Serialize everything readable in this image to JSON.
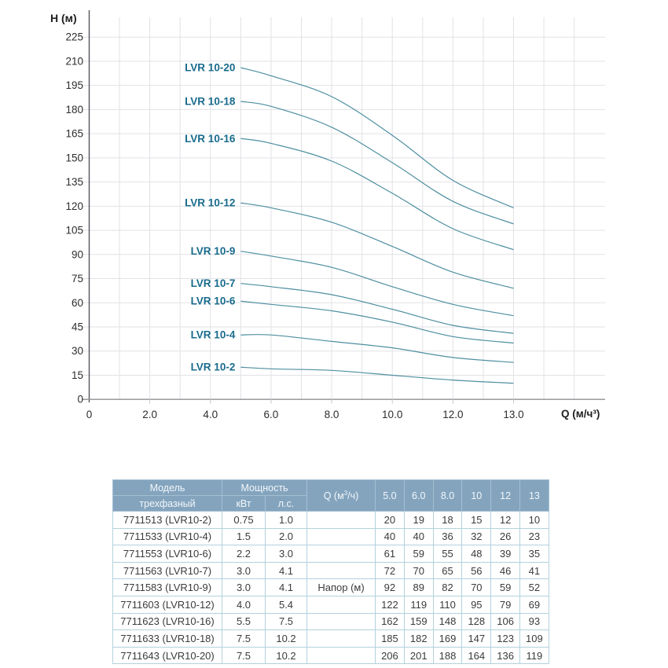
{
  "chart": {
    "y_axis_title": "H (м)",
    "x_axis_title": "Q (м/ч³)",
    "y_ticks": [
      0,
      15,
      30,
      45,
      60,
      75,
      90,
      105,
      120,
      135,
      150,
      165,
      180,
      195,
      210,
      225
    ],
    "x_ticks": [
      {
        "q": 0,
        "label": "0"
      },
      {
        "q": 2,
        "label": "2.0"
      },
      {
        "q": 4,
        "label": "4.0"
      },
      {
        "q": 6,
        "label": "6.0"
      },
      {
        "q": 8,
        "label": "8.0"
      },
      {
        "q": 10,
        "label": "10.0"
      },
      {
        "q": 12,
        "label": "12.0"
      },
      {
        "q": 13,
        "label": "13.0"
      }
    ]
  },
  "chart_data": {
    "type": "line",
    "title": "",
    "xlabel": "Q (м/ч³)",
    "ylabel": "H (м)",
    "xlim": [
      0,
      13
    ],
    "ylim": [
      0,
      235
    ],
    "grid": true,
    "legend_position": "inline-left-of-curves",
    "x": [
      5.0,
      6.0,
      8.0,
      10,
      12,
      13
    ],
    "series": [
      {
        "name": "LVR 10-2",
        "values": [
          20,
          19,
          18,
          15,
          12,
          10
        ]
      },
      {
        "name": "LVR 10-4",
        "values": [
          40,
          40,
          36,
          32,
          26,
          23
        ]
      },
      {
        "name": "LVR 10-6",
        "values": [
          61,
          59,
          55,
          48,
          39,
          35
        ]
      },
      {
        "name": "LVR 10-7",
        "values": [
          72,
          70,
          65,
          56,
          46,
          41
        ]
      },
      {
        "name": "LVR 10-9",
        "values": [
          92,
          89,
          82,
          70,
          59,
          52
        ]
      },
      {
        "name": "LVR 10-12",
        "values": [
          122,
          119,
          110,
          95,
          79,
          69
        ]
      },
      {
        "name": "LVR 10-16",
        "values": [
          162,
          159,
          148,
          128,
          106,
          93
        ]
      },
      {
        "name": "LVR 10-18",
        "values": [
          185,
          182,
          169,
          147,
          123,
          109
        ]
      },
      {
        "name": "LVR 10-20",
        "values": [
          206,
          201,
          188,
          164,
          136,
          119
        ]
      }
    ]
  },
  "colors": {
    "curve": "#4e8fa0",
    "curve_label": "#196b8d",
    "grid": "#e2e2e6",
    "axis_y": "#55555c",
    "axis_x": "#8f8f94",
    "tick_text": "#2d2d2d",
    "table_header_bg": "#84a4be",
    "table_header_text": "#f2f7fa",
    "table_border": "#b3d1dc",
    "table_text": "#3b3b3b"
  },
  "table": {
    "header": {
      "model_top": "Модель",
      "model_bottom": "трехфазный",
      "power": "Мощность",
      "power_kw": "кВт",
      "power_hp": "л.с.",
      "q": "Q (м³/ч)",
      "flows": [
        "5.0",
        "6.0",
        "8.0",
        "10",
        "12",
        "13"
      ]
    },
    "rows": [
      {
        "model": "7711513 (LVR10-2)",
        "kw": "0.75",
        "hp": "1.0",
        "q": "",
        "heads": [
          "20",
          "19",
          "18",
          "15",
          "12",
          "10"
        ]
      },
      {
        "model": "7711533 (LVR10-4)",
        "kw": "1.5",
        "hp": "2.0",
        "q": "",
        "heads": [
          "40",
          "40",
          "36",
          "32",
          "26",
          "23"
        ]
      },
      {
        "model": "7711553 (LVR10-6)",
        "kw": "2.2",
        "hp": "3.0",
        "q": "",
        "heads": [
          "61",
          "59",
          "55",
          "48",
          "39",
          "35"
        ]
      },
      {
        "model": "7711563 (LVR10-7)",
        "kw": "3.0",
        "hp": "4.1",
        "q": "",
        "heads": [
          "72",
          "70",
          "65",
          "56",
          "46",
          "41"
        ]
      },
      {
        "model": "7711583 (LVR10-9)",
        "kw": "3.0",
        "hp": "4.1",
        "q": "Напор (м)",
        "heads": [
          "92",
          "89",
          "82",
          "70",
          "59",
          "52"
        ]
      },
      {
        "model": "7711603 (LVR10-12)",
        "kw": "4.0",
        "hp": "5.4",
        "q": "",
        "heads": [
          "122",
          "119",
          "110",
          "95",
          "79",
          "69"
        ]
      },
      {
        "model": "7711623 (LVR10-16)",
        "kw": "5.5",
        "hp": "7.5",
        "q": "",
        "heads": [
          "162",
          "159",
          "148",
          "128",
          "106",
          "93"
        ]
      },
      {
        "model": "7711633 (LVR10-18)",
        "kw": "7.5",
        "hp": "10.2",
        "q": "",
        "heads": [
          "185",
          "182",
          "169",
          "147",
          "123",
          "109"
        ]
      },
      {
        "model": "7711643 (LVR10-20)",
        "kw": "7.5",
        "hp": "10.2",
        "q": "",
        "heads": [
          "206",
          "201",
          "188",
          "164",
          "136",
          "119"
        ]
      }
    ]
  }
}
